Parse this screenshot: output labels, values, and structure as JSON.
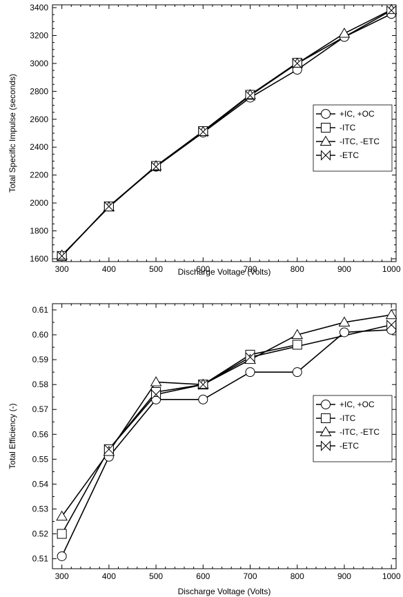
{
  "chart_data": [
    {
      "type": "line",
      "title": "",
      "xlabel": "Discharge Voltage (Volts)",
      "ylabel": "Total Specific Impulse (seconds)",
      "xlim": [
        280,
        1010
      ],
      "ylim": [
        1580,
        3420
      ],
      "xticks": [
        300,
        400,
        500,
        600,
        700,
        800,
        900,
        1000
      ],
      "yticks": [
        1600,
        1800,
        2000,
        2200,
        2400,
        2600,
        2800,
        3000,
        3200,
        3400
      ],
      "legend": "center-right",
      "grid": false,
      "series": [
        {
          "name": "+IC, +OC",
          "marker": "circle",
          "x": [
            300,
            400,
            500,
            600,
            700,
            800,
            900,
            1000
          ],
          "y": [
            1620,
            1975,
            2260,
            2505,
            2755,
            2955,
            3190,
            3355
          ]
        },
        {
          "name": "-ITC",
          "marker": "square",
          "x": [
            300,
            400,
            500,
            600,
            700,
            800
          ],
          "y": [
            1620,
            1975,
            2265,
            2515,
            2775,
            3005
          ]
        },
        {
          "name": "-ITC, -ETC",
          "marker": "triangle",
          "x": [
            300,
            400,
            500,
            600,
            700,
            800,
            900,
            1000
          ],
          "y": [
            1625,
            1970,
            2265,
            2510,
            2775,
            3000,
            3215,
            3385
          ]
        },
        {
          "name": "-ETC",
          "marker": "bowtie",
          "x": [
            300,
            400,
            500,
            600,
            700,
            800,
            1000
          ],
          "y": [
            1620,
            1975,
            2260,
            2510,
            2770,
            3000,
            3380
          ]
        }
      ]
    },
    {
      "type": "line",
      "title": "",
      "xlabel": "Discharge Voltage (Volts)",
      "ylabel": "Total Efficiency (-)",
      "xlim": [
        280,
        1010
      ],
      "ylim": [
        0.506,
        0.6125
      ],
      "xticks": [
        300,
        400,
        500,
        600,
        700,
        800,
        900,
        1000
      ],
      "yticks": [
        0.51,
        0.52,
        0.53,
        0.54,
        0.55,
        0.56,
        0.57,
        0.58,
        0.59,
        0.6,
        0.61
      ],
      "ytick_labels": [
        "0.51",
        "0.52",
        "0.53",
        "0.54",
        "0.55",
        "0.56",
        "0.57",
        "0.58",
        "0.59",
        "0.60",
        "0.61"
      ],
      "legend": "center-right",
      "grid": false,
      "series": [
        {
          "name": "+IC, +OC",
          "marker": "circle",
          "x": [
            300,
            400,
            500,
            600,
            700,
            800,
            900,
            1000
          ],
          "y": [
            0.511,
            0.551,
            0.574,
            0.574,
            0.585,
            0.585,
            0.601,
            0.602
          ]
        },
        {
          "name": "-ITC",
          "marker": "square",
          "x": [
            300,
            400,
            500,
            600,
            700,
            800
          ],
          "y": [
            0.52,
            0.554,
            0.577,
            0.58,
            0.592,
            0.596
          ]
        },
        {
          "name": "-ITC, -ETC",
          "marker": "triangle",
          "x": [
            300,
            400,
            500,
            600,
            700,
            800,
            900,
            1000
          ],
          "y": [
            0.527,
            0.553,
            0.581,
            0.58,
            0.59,
            0.6,
            0.605,
            0.608
          ]
        },
        {
          "name": "-ETC",
          "marker": "bowtie",
          "x": [
            400,
            500,
            600,
            700,
            1000
          ],
          "y": [
            0.554,
            0.576,
            0.58,
            0.591,
            0.604
          ]
        }
      ]
    }
  ]
}
